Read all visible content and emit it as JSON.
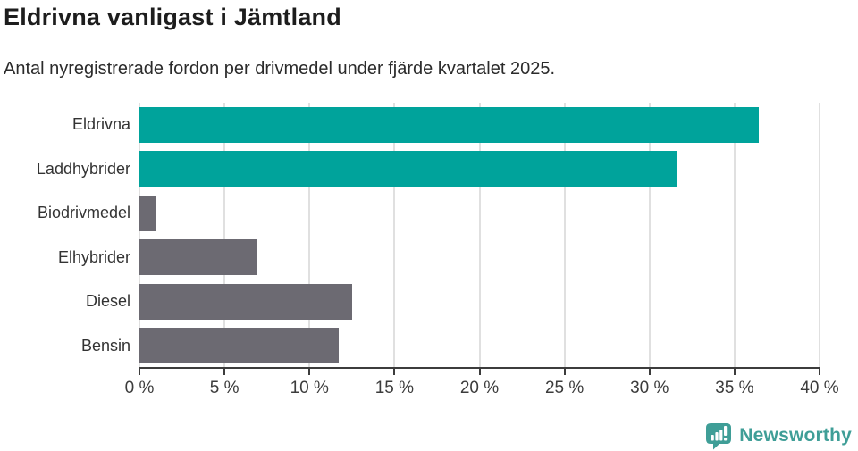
{
  "title": "Eldrivna vanligast i Jämtland",
  "subtitle": "Antal nyregistrerade fordon per drivmedel under fjärde kvartalet 2025.",
  "colors": {
    "teal": "#00a39b",
    "gray": "#6c6a72",
    "grid": "#e0e0e0",
    "axis": "#3c3c3c",
    "tick_text": "#3c3c3c",
    "label_text": "#333333",
    "title_text": "#1d1d1d",
    "subtitle_text": "#2b2b2b",
    "logo_teal": "#3f9e97"
  },
  "chart_data": {
    "type": "bar",
    "orientation": "horizontal",
    "title": "Eldrivna vanligast i Jämtland",
    "subtitle": "Antal nyregistrerade fordon per drivmedel under fjärde kvartalet 2025.",
    "categories": [
      "Eldrivna",
      "Laddhybrider",
      "Biodrivmedel",
      "Elhybrider",
      "Diesel",
      "Bensin"
    ],
    "values": [
      36.4,
      31.6,
      1.0,
      6.9,
      12.5,
      11.7
    ],
    "unit": "%",
    "bar_colors": [
      "#00a39b",
      "#00a39b",
      "#6c6a72",
      "#6c6a72",
      "#6c6a72",
      "#6c6a72"
    ],
    "xlim": [
      0,
      40
    ],
    "x_tick_values": [
      0,
      5,
      10,
      15,
      20,
      25,
      30,
      35,
      40
    ],
    "x_tick_labels": [
      "0 %",
      "5 %",
      "10 %",
      "15 %",
      "20 %",
      "25 %",
      "30 %",
      "35 %",
      "40 %"
    ],
    "grid": true,
    "legend": false,
    "xlabel": "",
    "ylabel": ""
  },
  "footer": {
    "brand": "Newsworthy",
    "logo_icon": "bar-chart-speech-bubble-icon"
  }
}
